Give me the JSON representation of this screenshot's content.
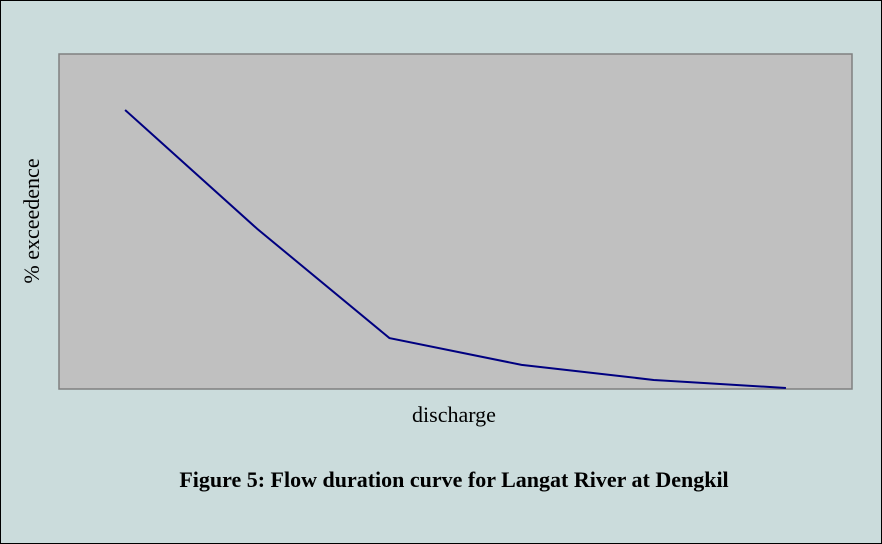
{
  "chart_data": {
    "type": "line",
    "title": "Figure 5: Flow duration curve for Langat River at Dengkil",
    "x_label": "discharge",
    "y_label": "% exceedence",
    "categories": [
      null,
      null,
      null,
      null,
      null,
      null
    ],
    "series": [
      {
        "color": "#000080",
        "values": [
          83.3,
          47.8,
          15.2,
          7.2,
          2.7,
          0.3
        ]
      }
    ],
    "ylim": [
      0,
      100
    ],
    "plot_background": "#c0c0c0",
    "grid": false
  }
}
